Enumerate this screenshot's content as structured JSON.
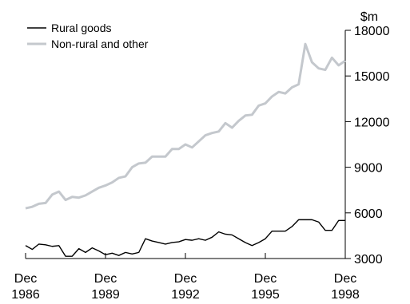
{
  "chart_data": {
    "type": "line",
    "unit": "$m",
    "ylim": [
      3000,
      18000
    ],
    "y_ticks": [
      3000,
      6000,
      9000,
      12000,
      15000,
      18000
    ],
    "y_tick_labels": [
      "3000",
      "6000",
      "9000",
      "12000",
      "15000",
      "18000"
    ],
    "xlim": [
      "1986-12",
      "1998-12"
    ],
    "x_ticks": [
      "1986-12",
      "1989-12",
      "1992-12",
      "1995-12",
      "1998-12"
    ],
    "x_tick_labels": [
      [
        "Dec",
        "1986"
      ],
      [
        "Dec",
        "1989"
      ],
      [
        "Dec",
        "1992"
      ],
      [
        "Dec",
        "1995"
      ],
      [
        "Dec",
        "1998"
      ]
    ],
    "grid": false,
    "legend_position": "top-left",
    "x": [
      "1986-12",
      "1987-03",
      "1987-06",
      "1987-09",
      "1987-12",
      "1988-03",
      "1988-06",
      "1988-09",
      "1988-12",
      "1989-03",
      "1989-06",
      "1989-09",
      "1989-12",
      "1990-03",
      "1990-06",
      "1990-09",
      "1990-12",
      "1991-03",
      "1991-06",
      "1991-09",
      "1991-12",
      "1992-03",
      "1992-06",
      "1992-09",
      "1992-12",
      "1993-03",
      "1993-06",
      "1993-09",
      "1993-12",
      "1994-03",
      "1994-06",
      "1994-09",
      "1994-12",
      "1995-03",
      "1995-06",
      "1995-09",
      "1995-12",
      "1996-03",
      "1996-06",
      "1996-09",
      "1996-12",
      "1997-03",
      "1997-06",
      "1997-09",
      "1997-12",
      "1998-03",
      "1998-06",
      "1998-09",
      "1998-12"
    ],
    "series": [
      {
        "name": "Rural goods",
        "color": "#000000",
        "values": [
          3850,
          3600,
          3950,
          3900,
          3800,
          3850,
          3150,
          3150,
          3650,
          3400,
          3700,
          3500,
          3250,
          3350,
          3200,
          3400,
          3300,
          3400,
          4300,
          4150,
          4050,
          3950,
          4050,
          4100,
          4250,
          4200,
          4300,
          4200,
          4400,
          4750,
          4600,
          4550,
          4300,
          4050,
          3850,
          4050,
          4300,
          4800,
          4800,
          4800,
          5100,
          5550,
          5550,
          5550,
          5400,
          4850,
          4850,
          5500,
          5500
        ]
      },
      {
        "name": "Non-rural and other",
        "color": "#c4c8cd",
        "values": [
          6300,
          6400,
          6600,
          6650,
          7200,
          7400,
          6850,
          7050,
          7000,
          7150,
          7400,
          7650,
          7800,
          8000,
          8300,
          8400,
          9000,
          9250,
          9300,
          9700,
          9700,
          9700,
          10200,
          10200,
          10500,
          10300,
          10700,
          11100,
          11250,
          11350,
          11900,
          11600,
          12050,
          12400,
          12450,
          13050,
          13200,
          13650,
          13950,
          13850,
          14250,
          14450,
          17100,
          15900,
          15500,
          15400,
          16200,
          15700,
          16000
        ]
      }
    ]
  }
}
